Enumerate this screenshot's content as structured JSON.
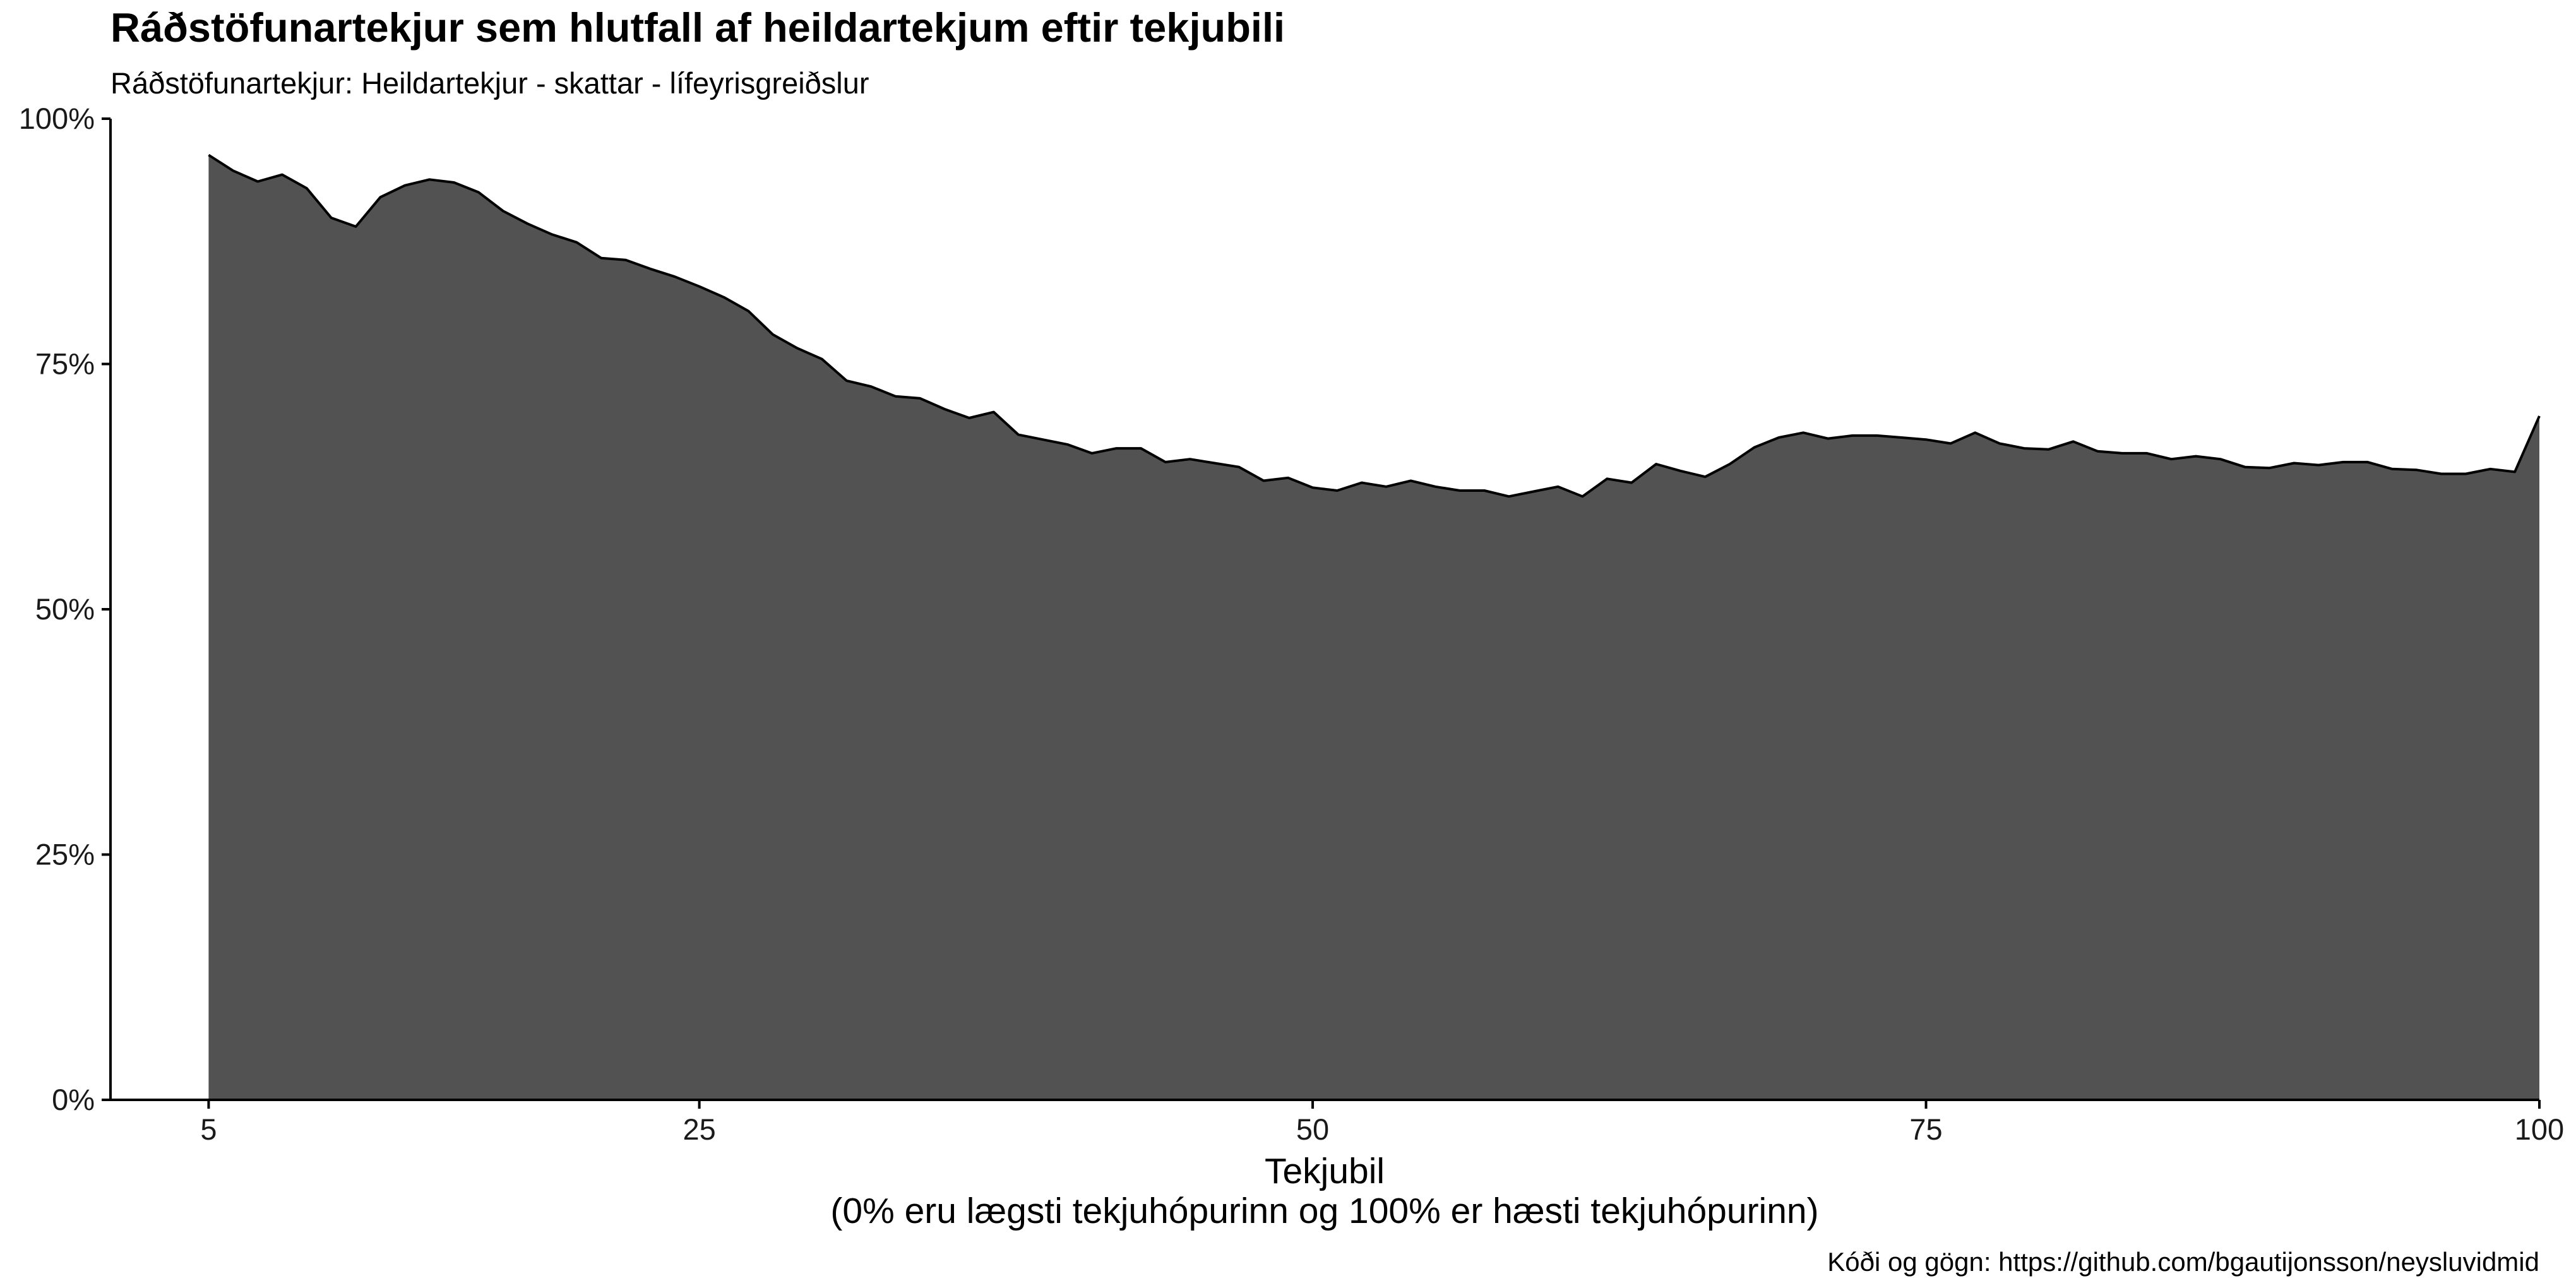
{
  "chart_data": {
    "type": "area",
    "title": "Ráðstöfunartekjur sem hlutfall af heildartekjum eftir tekjubili",
    "subtitle": "Ráðstöfunartekjur: Heildartekjur - skattar - lífeyrisgreiðslur",
    "xlabel": "Tekjubil",
    "xlabel_note": "(0% eru lægsti tekjuhópurinn og 100% er hæsti tekjuhópurinn)",
    "ylabel": "",
    "caption": "Kóði og gögn: https://github.com/bgautijonsson/neysluvidmid",
    "xlim": [
      1,
      100
    ],
    "ylim": [
      0,
      1
    ],
    "x_ticks": [
      5,
      25,
      50,
      75,
      100
    ],
    "x_tick_labels": [
      "5",
      "25",
      "50",
      "75",
      "100"
    ],
    "y_ticks": [
      0,
      0.25,
      0.5,
      0.75,
      1
    ],
    "y_tick_labels": [
      "0%",
      "25%",
      "50%",
      "75%",
      "100%"
    ],
    "grid": false,
    "legend": "none",
    "fill_color": "#525252",
    "line_color": "#000000",
    "series": [
      {
        "x": [
          5,
          6,
          7,
          8,
          9,
          10,
          11,
          12,
          13,
          14,
          15,
          16,
          17,
          18,
          19,
          20,
          21,
          22,
          23,
          24,
          25,
          26,
          27,
          28,
          29,
          30,
          31,
          32,
          33,
          34,
          35,
          36,
          37,
          38,
          39,
          40,
          41,
          42,
          43,
          44,
          45,
          46,
          47,
          48,
          49,
          50,
          51,
          52,
          53,
          54,
          55,
          56,
          57,
          58,
          59,
          60,
          61,
          62,
          63,
          64,
          65,
          66,
          67,
          68,
          69,
          70,
          71,
          72,
          73,
          74,
          75,
          76,
          77,
          78,
          79,
          80,
          81,
          82,
          83,
          84,
          85,
          86,
          87,
          88,
          89,
          90,
          91,
          92,
          93,
          94,
          95,
          96,
          97,
          98,
          99,
          100
        ],
        "values": [
          0.963,
          0.947,
          0.936,
          0.943,
          0.929,
          0.899,
          0.89,
          0.92,
          0.932,
          0.938,
          0.935,
          0.925,
          0.906,
          0.893,
          0.882,
          0.874,
          0.858,
          0.856,
          0.847,
          0.839,
          0.829,
          0.818,
          0.804,
          0.78,
          0.766,
          0.755,
          0.733,
          0.727,
          0.717,
          0.715,
          0.704,
          0.695,
          0.701,
          0.678,
          0.673,
          0.668,
          0.659,
          0.664,
          0.664,
          0.65,
          0.653,
          0.649,
          0.645,
          0.631,
          0.634,
          0.624,
          0.621,
          0.629,
          0.625,
          0.631,
          0.625,
          0.621,
          0.621,
          0.615,
          0.62,
          0.625,
          0.615,
          0.633,
          0.629,
          0.648,
          0.641,
          0.635,
          0.648,
          0.665,
          0.675,
          0.68,
          0.674,
          0.677,
          0.677,
          0.675,
          0.673,
          0.669,
          0.68,
          0.669,
          0.664,
          0.663,
          0.671,
          0.661,
          0.659,
          0.659,
          0.653,
          0.656,
          0.653,
          0.645,
          0.644,
          0.649,
          0.647,
          0.65,
          0.65,
          0.643,
          0.642,
          0.638,
          0.638,
          0.643,
          0.64,
          0.697
        ]
      }
    ]
  }
}
